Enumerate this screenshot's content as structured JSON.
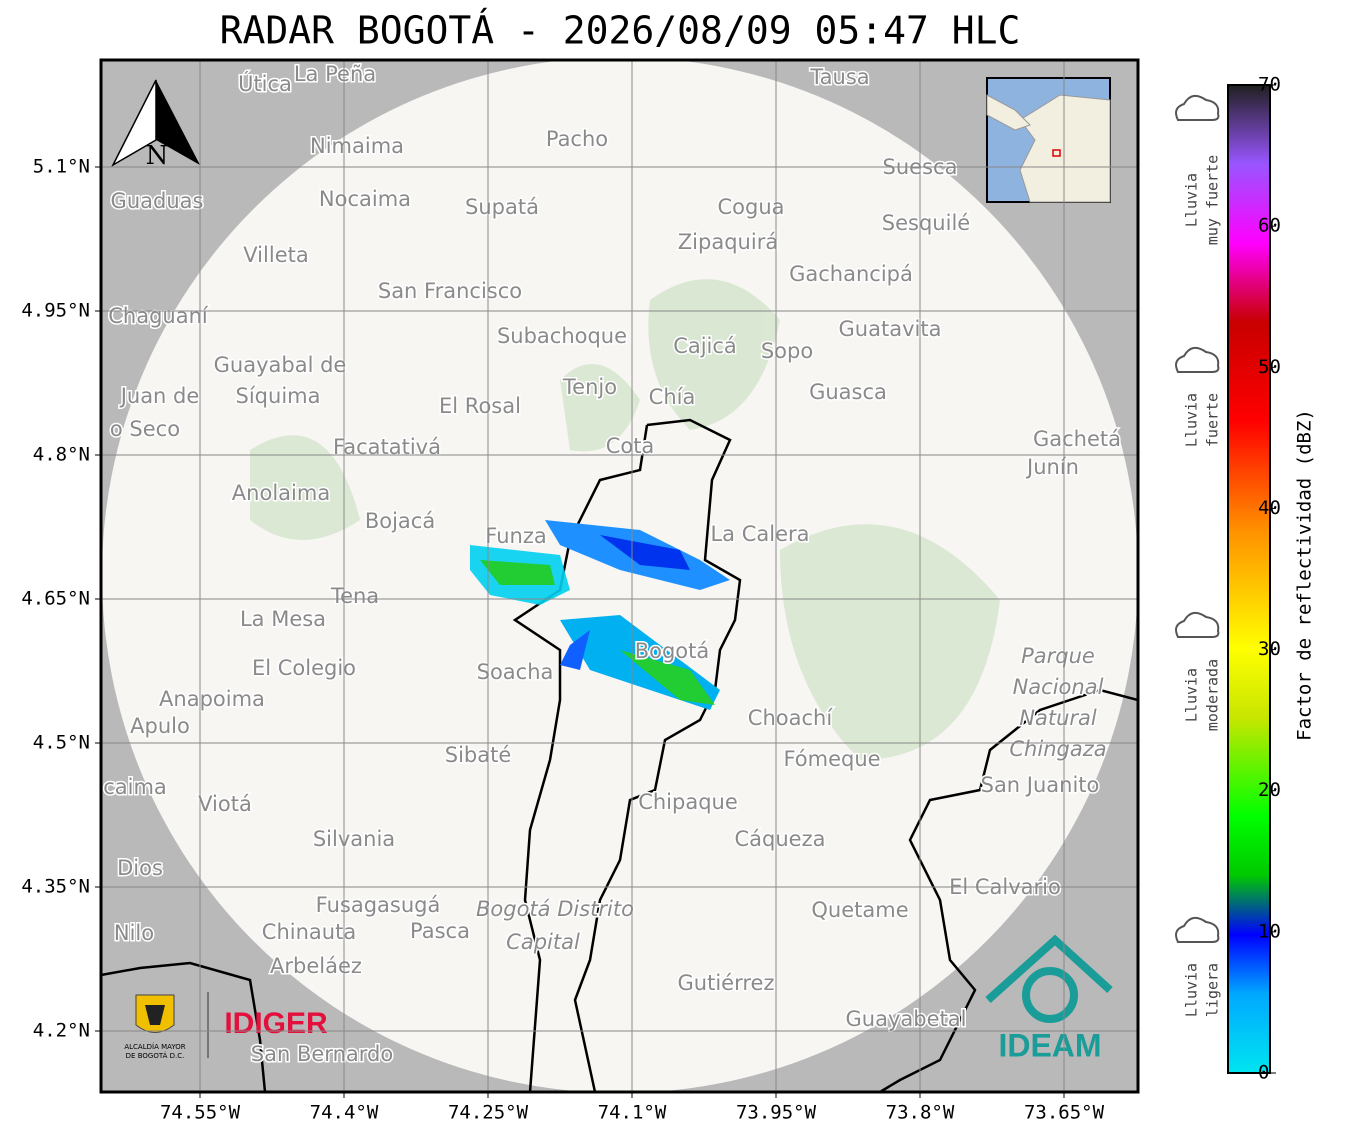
{
  "title": "RADAR BOGOTÁ - 2026/08/09 05:47 HLC",
  "map": {
    "lat_ticks": [
      {
        "value": 5.1,
        "label": "5.1°N"
      },
      {
        "value": 4.95,
        "label": "4.95°N"
      },
      {
        "value": 4.8,
        "label": "4.8°N"
      },
      {
        "value": 4.65,
        "label": "4.65°N"
      },
      {
        "value": 4.5,
        "label": "4.5°N"
      },
      {
        "value": 4.35,
        "label": "4.35°N"
      },
      {
        "value": 4.2,
        "label": "4.2°N"
      }
    ],
    "lon_ticks": [
      {
        "value": -74.55,
        "label": "74.55°W"
      },
      {
        "value": -74.4,
        "label": "74.4°W"
      },
      {
        "value": -74.25,
        "label": "74.25°W"
      },
      {
        "value": -74.1,
        "label": "74.1°W"
      },
      {
        "value": -73.95,
        "label": "73.95°W"
      },
      {
        "value": -73.8,
        "label": "73.8°W"
      },
      {
        "value": -73.65,
        "label": "73.65°W"
      }
    ],
    "north": "N",
    "places": [
      "Útica",
      "La Peña",
      "Tausa",
      "Pacho",
      "Nimaima",
      "Guaduas",
      "Nocaima",
      "Supatá",
      "Cogua",
      "Suesca",
      "Sesquilé",
      "Zipaquirá",
      "Villeta",
      "Gachancipá",
      "San Francisco",
      "Chaguaní",
      "Guatavita",
      "Subachoque",
      "Cajicá",
      "Sopo",
      "Guayabal de",
      "Síquima",
      "Juan de",
      "o Seco",
      "Tenjo",
      "Chía",
      "El Rosal",
      "Guasca",
      "Facatativá",
      "Cota",
      "Gachetá",
      "Junín",
      "Anolaima",
      "Bojacá",
      "Funza",
      "La Calera",
      "Tena",
      "La Mesa",
      "El Colegio",
      "Soacha",
      "Bogotá",
      "Anapoima",
      "Apulo",
      "Choachí",
      "Sibaté",
      "Fómeque",
      "San Juanito",
      "caima",
      "Viotá",
      "Chipaque",
      "Silvania",
      "Cáqueza",
      "Dios",
      "El Calvario",
      "Fusagasugá",
      "Quetame",
      "Nilo",
      "Chinauta",
      "Pasca",
      "Arbeláez",
      "Gutiérrez",
      "Guayabetal",
      "San Bernardo"
    ],
    "park": [
      "Parque",
      "Nacional",
      "Natural",
      "Chingaza"
    ],
    "district": [
      "Bogotá Distrito",
      "Capital"
    ]
  },
  "logos": {
    "alcaldia": [
      "ALCALDÍA MAYOR",
      "DE BOGOTÁ D.C."
    ],
    "idiger": "IDIGER",
    "ideam": "IDEAM"
  },
  "colorbar": {
    "label": "Factor de reflectividad (dBZ)",
    "lim": [
      0,
      70
    ],
    "ticks": [
      0,
      10,
      20,
      30,
      40,
      50,
      60,
      70
    ],
    "levels": [
      [
        "Lluvia",
        "muy fuerte"
      ],
      [
        "Lluvia",
        "fuerte"
      ],
      [
        "Lluvia",
        "moderada"
      ],
      [
        "Lluvia",
        "ligera"
      ]
    ]
  }
}
